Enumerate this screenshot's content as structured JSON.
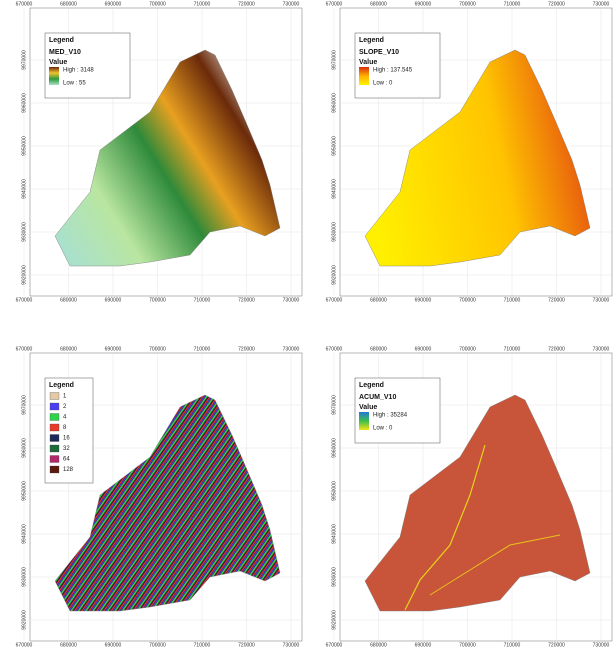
{
  "x_ticks": [
    670000,
    680000,
    690000,
    700000,
    710000,
    720000,
    730000
  ],
  "y_ticks": [
    9970000,
    9960000,
    9950000,
    9940000,
    9930000,
    9920000
  ],
  "panels": [
    {
      "kind": "dem",
      "legend_title": "Legend",
      "layer": "MED_V10",
      "value_heading": "Value",
      "high": "High : 3148",
      "low": "Low : 55",
      "ramp": [
        "#6b2a0a",
        "#f2c230",
        "#2e9a3a",
        "#a8e0c8"
      ]
    },
    {
      "kind": "slope",
      "legend_title": "Legend",
      "layer": "SLOPE_V10",
      "value_heading": "Value",
      "high": "High : 137.545",
      "low": "Low : 0",
      "ramp": [
        "#d92d0e",
        "#ffb000",
        "#fff200"
      ]
    },
    {
      "kind": "dir",
      "legend_title": "Legend",
      "classes": [
        {
          "label": 1,
          "color": "#e3c9a8"
        },
        {
          "label": 2,
          "color": "#4a3df0"
        },
        {
          "label": 4,
          "color": "#2fd24a"
        },
        {
          "label": 8,
          "color": "#e83a2a"
        },
        {
          "label": 16,
          "color": "#1b2a5a"
        },
        {
          "label": 32,
          "color": "#1f6a3a"
        },
        {
          "label": 64,
          "color": "#b3286a"
        },
        {
          "label": 128,
          "color": "#5a1a10"
        }
      ]
    },
    {
      "kind": "acum",
      "legend_title": "Legend",
      "layer": "ACUM_V10",
      "value_heading": "Value",
      "high": "High : 35284",
      "low": "Low : 0",
      "ramp": [
        "#1f7ad8",
        "#3cc04a",
        "#f5e21a"
      ]
    }
  ]
}
